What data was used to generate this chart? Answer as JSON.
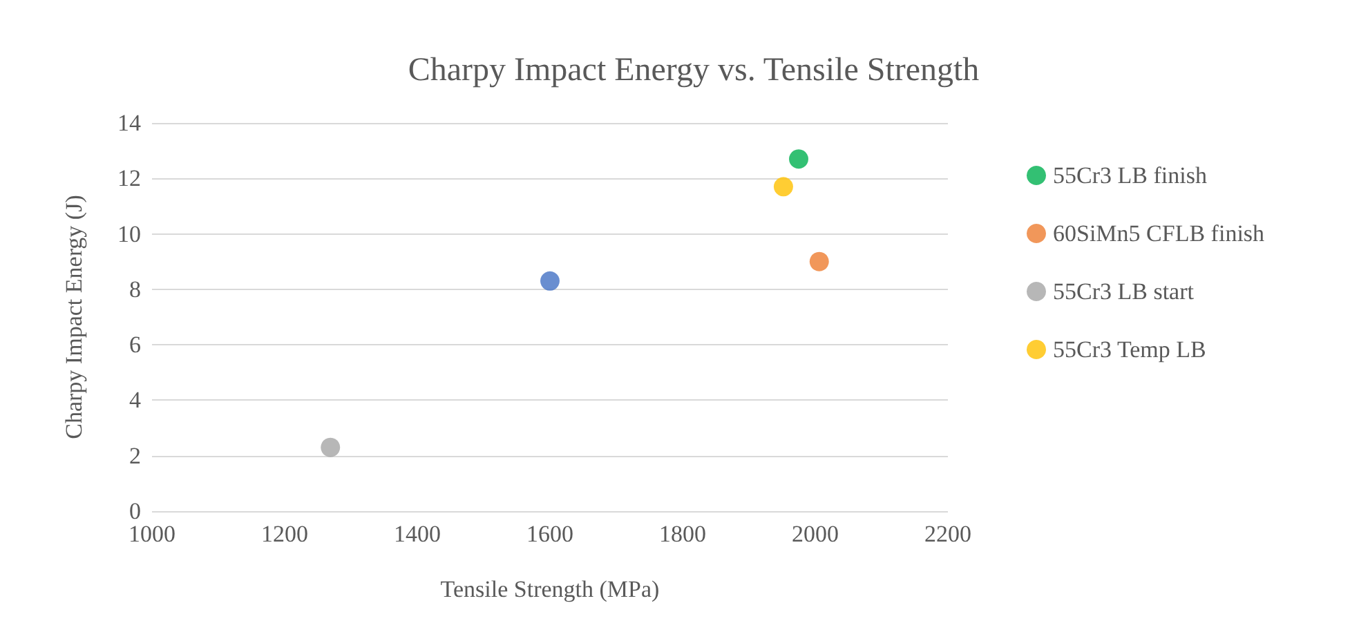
{
  "chart_data": {
    "type": "scatter",
    "title": "Charpy Impact Energy vs. Tensile Strength",
    "xlabel": "Tensile Strength (MPa)",
    "ylabel": "Charpy Impact Energy (J)",
    "series": [
      {
        "color": "#4472c4",
        "x": [
          1600
        ],
        "values": [
          8.3
        ]
      },
      {
        "name": "55Cr3 LB finish",
        "color": "#00b050",
        "x": [
          1975
        ],
        "values": [
          12.7
        ]
      },
      {
        "name": "60SiMn5 CFLB finish",
        "color": "#ed7d31",
        "x": [
          2006
        ],
        "values": [
          9.0
        ]
      },
      {
        "name": "55Cr3 LB start",
        "color": "#a5a5a5",
        "x": [
          1269
        ],
        "values": [
          2.3
        ]
      },
      {
        "name": "55Cr3 Temp LB",
        "color": "#ffc000",
        "x": [
          1952
        ],
        "values": [
          11.7
        ]
      }
    ],
    "xlim": [
      1000,
      2200
    ],
    "xticks": [
      1000,
      1200,
      1400,
      1600,
      1800,
      2000,
      2200
    ],
    "ylim": [
      0,
      14
    ],
    "yticks": [
      0,
      2,
      4,
      6,
      8,
      10,
      12,
      14
    ],
    "grid": "y",
    "legend": "right",
    "marker": "circle"
  }
}
